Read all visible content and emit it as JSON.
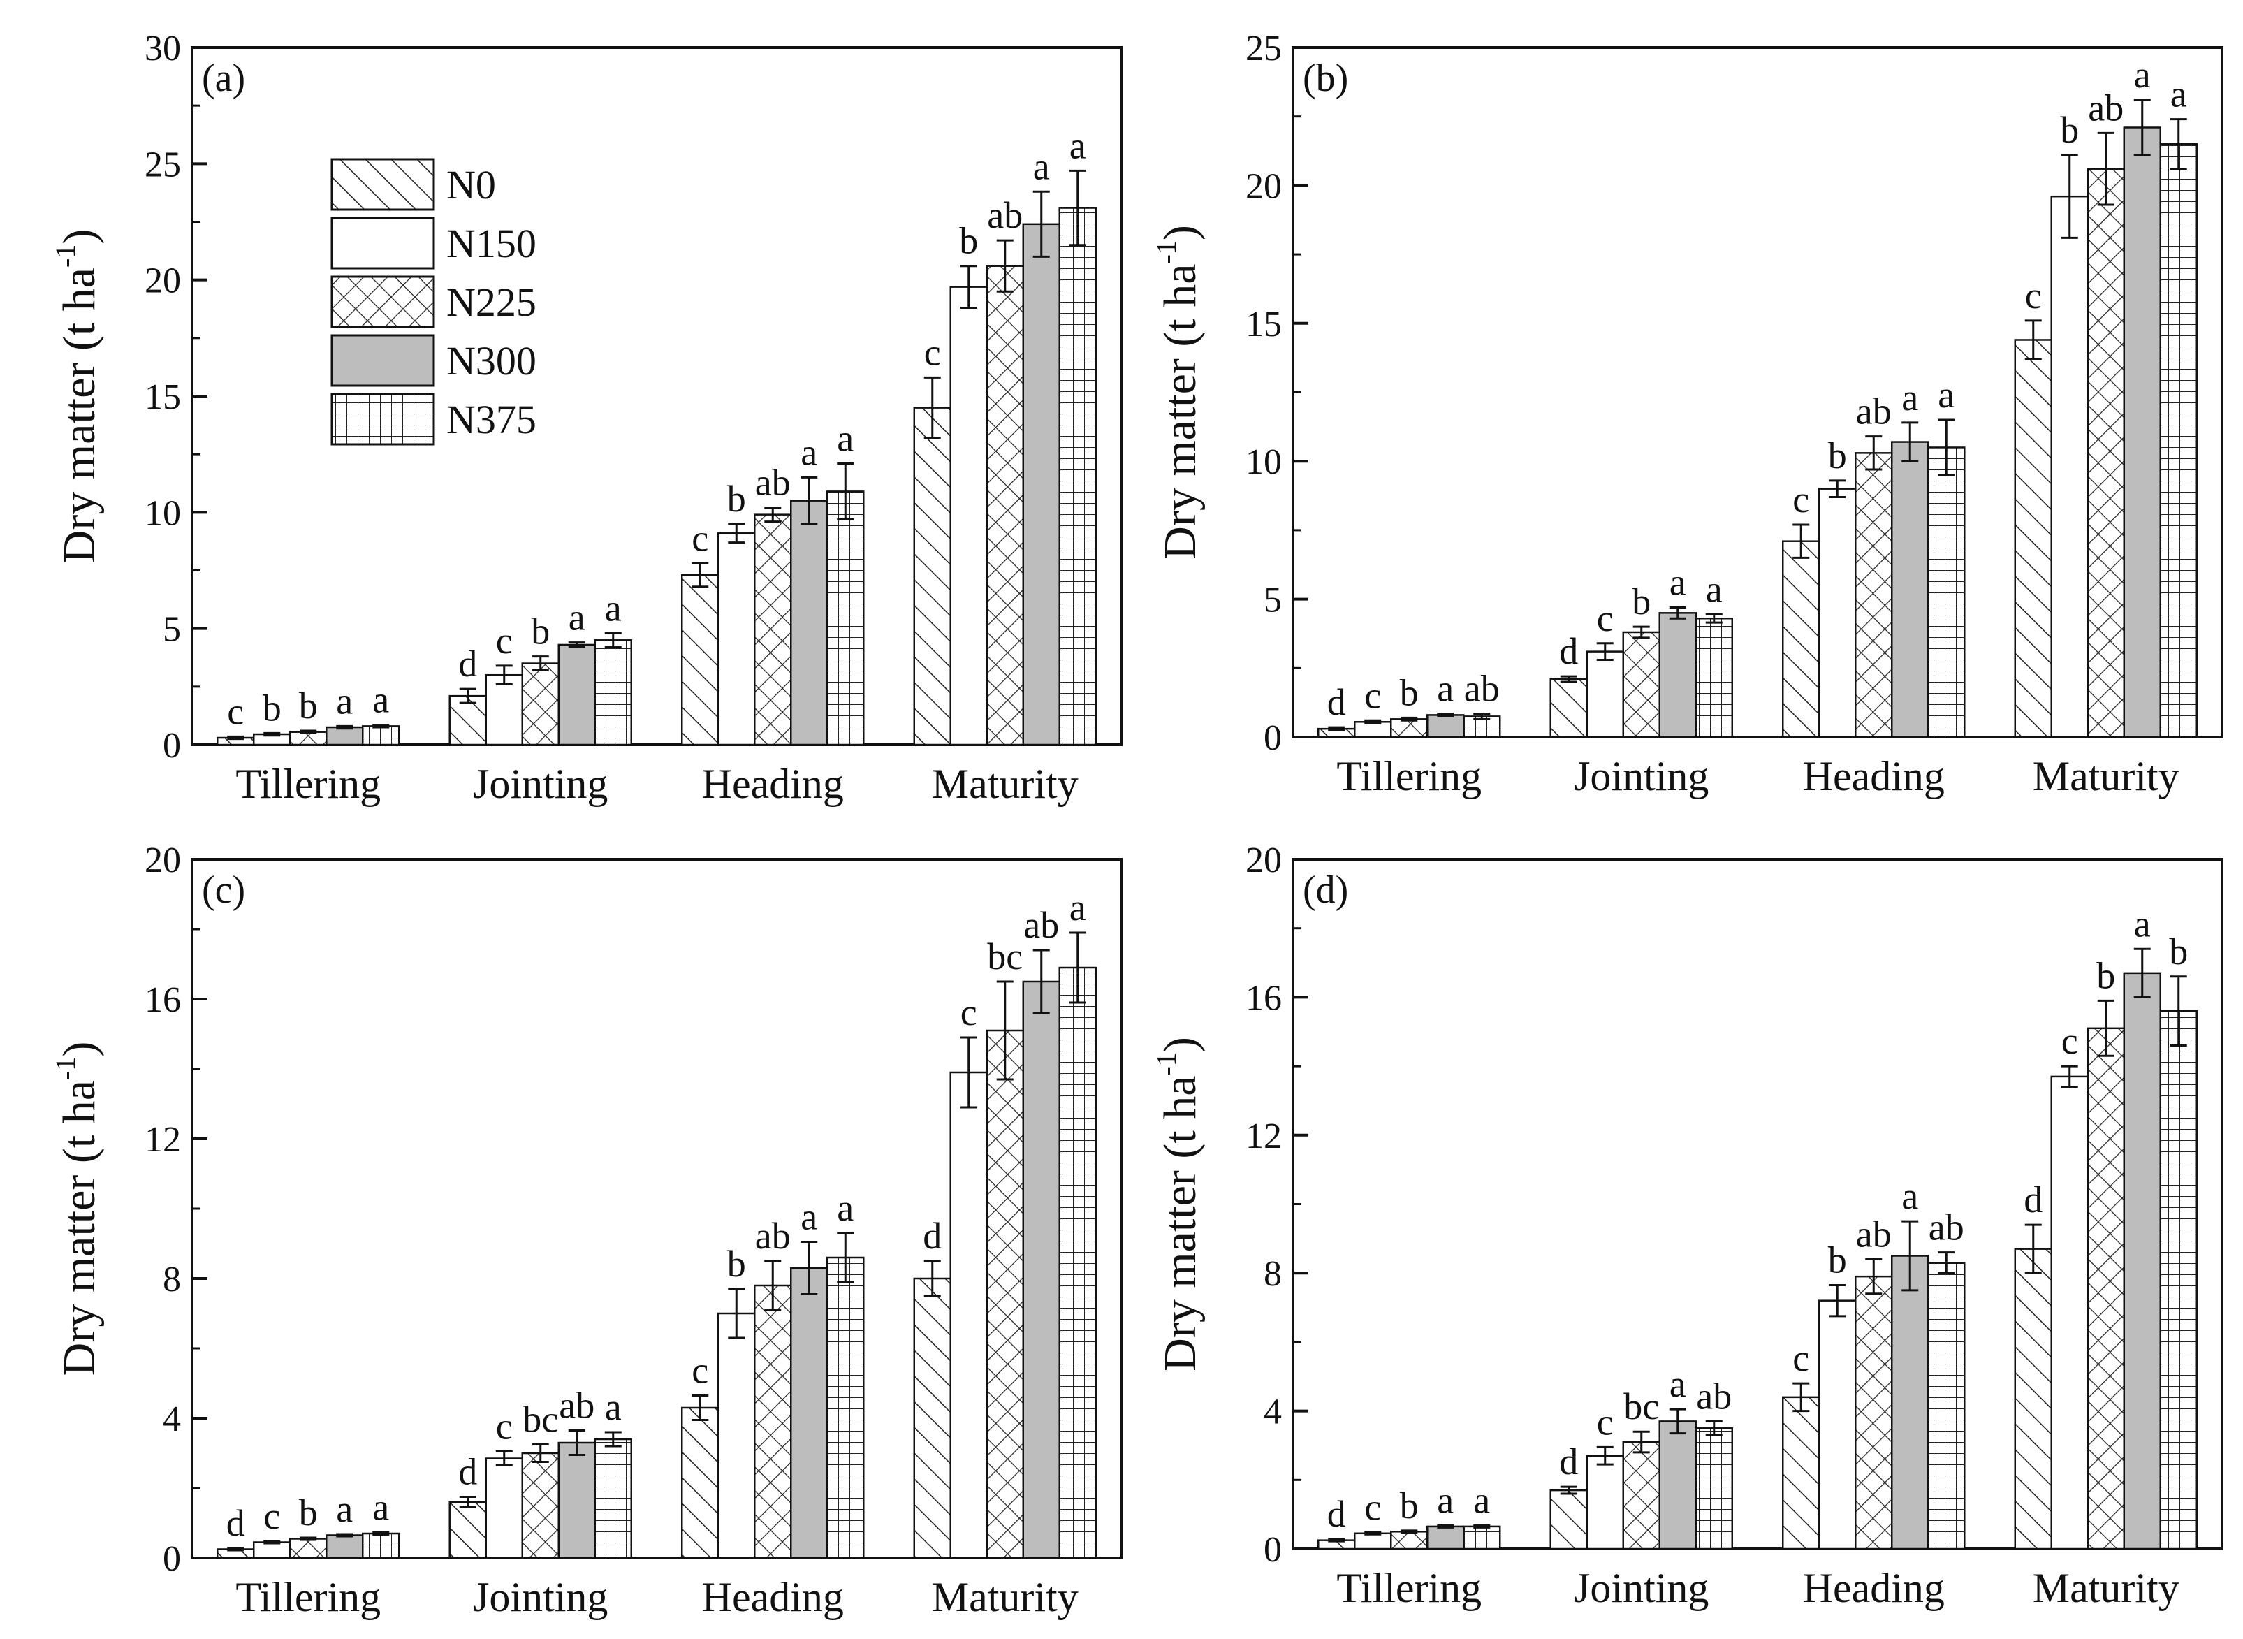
{
  "colors": {
    "axis": "#111111",
    "bar_fill": "#ffffff",
    "n300_fill": "#bdbdbd",
    "pattern_stroke": "#222222"
  },
  "legend": [
    {
      "name": "N0",
      "pattern": "diagonal-hatch"
    },
    {
      "name": "N150",
      "pattern": "blank"
    },
    {
      "name": "N225",
      "pattern": "cross-hatch"
    },
    {
      "name": "N300",
      "pattern": "gray"
    },
    {
      "name": "N375",
      "pattern": "grid"
    }
  ],
  "chart_data": [
    {
      "type": "bar",
      "panel": "(a)",
      "ylabel": "Dry matter (t ha",
      "ylabel_sup": "-1",
      "ylabel_close": ")",
      "ylim": [
        0,
        30
      ],
      "yticks": [
        0,
        5,
        10,
        15,
        20,
        25,
        30
      ],
      "categories": [
        "Tillering",
        "Jointing",
        "Heading",
        "Maturity"
      ],
      "show_legend": true,
      "series": [
        {
          "name": "N0",
          "values": [
            0.3,
            2.1,
            7.3,
            14.5
          ],
          "errors": [
            0.05,
            0.3,
            0.5,
            1.3
          ],
          "letters": [
            "c",
            "d",
            "c",
            "c"
          ]
        },
        {
          "name": "N150",
          "values": [
            0.45,
            3.0,
            9.1,
            19.7
          ],
          "errors": [
            0.05,
            0.4,
            0.4,
            0.9
          ],
          "letters": [
            "b",
            "c",
            "b",
            "b"
          ]
        },
        {
          "name": "N225",
          "values": [
            0.55,
            3.5,
            9.9,
            20.6
          ],
          "errors": [
            0.05,
            0.3,
            0.3,
            1.1
          ],
          "letters": [
            "b",
            "b",
            "ab",
            "ab"
          ]
        },
        {
          "name": "N300",
          "values": [
            0.75,
            4.3,
            10.5,
            22.4
          ],
          "errors": [
            0.05,
            0.1,
            1.0,
            1.4
          ],
          "letters": [
            "a",
            "a",
            "a",
            "a"
          ]
        },
        {
          "name": "N375",
          "values": [
            0.8,
            4.5,
            10.9,
            23.1
          ],
          "errors": [
            0.05,
            0.3,
            1.2,
            1.6
          ],
          "letters": [
            "a",
            "a",
            "a",
            "a"
          ]
        }
      ]
    },
    {
      "type": "bar",
      "panel": "(b)",
      "ylabel": "Dry matter (t ha",
      "ylabel_sup": "-1",
      "ylabel_close": ")",
      "ylim": [
        0,
        25
      ],
      "yticks": [
        0,
        5,
        10,
        15,
        20,
        25
      ],
      "categories": [
        "Tillering",
        "Jointing",
        "Heading",
        "Maturity"
      ],
      "show_legend": false,
      "series": [
        {
          "name": "N0",
          "values": [
            0.3,
            2.1,
            7.1,
            14.4
          ],
          "errors": [
            0.05,
            0.1,
            0.6,
            0.7
          ],
          "letters": [
            "d",
            "d",
            "c",
            "c"
          ]
        },
        {
          "name": "N150",
          "values": [
            0.55,
            3.1,
            9.0,
            19.6
          ],
          "errors": [
            0.05,
            0.3,
            0.3,
            1.5
          ],
          "letters": [
            "c",
            "c",
            "b",
            "b"
          ]
        },
        {
          "name": "N225",
          "values": [
            0.65,
            3.8,
            10.3,
            20.6
          ],
          "errors": [
            0.05,
            0.2,
            0.6,
            1.3
          ],
          "letters": [
            "b",
            "b",
            "ab",
            "ab"
          ]
        },
        {
          "name": "N300",
          "values": [
            0.8,
            4.5,
            10.7,
            22.1
          ],
          "errors": [
            0.05,
            0.2,
            0.7,
            1.0
          ],
          "letters": [
            "a",
            "a",
            "a",
            "a"
          ]
        },
        {
          "name": "N375",
          "values": [
            0.75,
            4.3,
            10.5,
            21.5
          ],
          "errors": [
            0.1,
            0.15,
            1.0,
            0.9
          ],
          "letters": [
            "ab",
            "a",
            "a",
            "a"
          ]
        }
      ]
    },
    {
      "type": "bar",
      "panel": "(c)",
      "ylabel": "Dry matter (t ha",
      "ylabel_sup": "-1",
      "ylabel_close": ")",
      "ylim": [
        0,
        20
      ],
      "yticks": [
        0,
        4,
        8,
        12,
        16,
        20
      ],
      "categories": [
        "Tillering",
        "Jointing",
        "Heading",
        "Maturity"
      ],
      "show_legend": false,
      "series": [
        {
          "name": "N0",
          "values": [
            0.25,
            1.6,
            4.3,
            8.0
          ],
          "errors": [
            0.03,
            0.15,
            0.35,
            0.5
          ],
          "letters": [
            "d",
            "d",
            "c",
            "d"
          ]
        },
        {
          "name": "N150",
          "values": [
            0.45,
            2.85,
            7.0,
            13.9
          ],
          "errors": [
            0.03,
            0.2,
            0.7,
            1.0
          ],
          "letters": [
            "c",
            "c",
            "b",
            "c"
          ]
        },
        {
          "name": "N225",
          "values": [
            0.55,
            3.0,
            7.8,
            15.1
          ],
          "errors": [
            0.03,
            0.25,
            0.7,
            1.4
          ],
          "letters": [
            "b",
            "bc",
            "ab",
            "bc"
          ]
        },
        {
          "name": "N300",
          "values": [
            0.65,
            3.3,
            8.3,
            16.5
          ],
          "errors": [
            0.03,
            0.35,
            0.75,
            0.9
          ],
          "letters": [
            "a",
            "ab",
            "a",
            "ab"
          ]
        },
        {
          "name": "N375",
          "values": [
            0.7,
            3.4,
            8.6,
            16.9
          ],
          "errors": [
            0.03,
            0.2,
            0.7,
            1.0
          ],
          "letters": [
            "a",
            "a",
            "a",
            "a"
          ]
        }
      ]
    },
    {
      "type": "bar",
      "panel": "(d)",
      "ylabel": "Dry matter (t ha",
      "ylabel_sup": "-1",
      "ylabel_close": ")",
      "ylim": [
        0,
        20
      ],
      "yticks": [
        0,
        4,
        8,
        12,
        16,
        20
      ],
      "categories": [
        "Tillering",
        "Jointing",
        "Heading",
        "Maturity"
      ],
      "show_legend": false,
      "series": [
        {
          "name": "N0",
          "values": [
            0.25,
            1.7,
            4.4,
            8.7
          ],
          "errors": [
            0.03,
            0.1,
            0.4,
            0.7
          ],
          "letters": [
            "d",
            "d",
            "c",
            "d"
          ]
        },
        {
          "name": "N150",
          "values": [
            0.45,
            2.7,
            7.2,
            13.7
          ],
          "errors": [
            0.03,
            0.25,
            0.45,
            0.3
          ],
          "letters": [
            "c",
            "c",
            "b",
            "c"
          ]
        },
        {
          "name": "N225",
          "values": [
            0.5,
            3.1,
            7.9,
            15.1
          ],
          "errors": [
            0.03,
            0.3,
            0.5,
            0.8
          ],
          "letters": [
            "b",
            "bc",
            "ab",
            "b"
          ]
        },
        {
          "name": "N300",
          "values": [
            0.65,
            3.7,
            8.5,
            16.7
          ],
          "errors": [
            0.03,
            0.35,
            1.0,
            0.7
          ],
          "letters": [
            "a",
            "a",
            "a",
            "a"
          ]
        },
        {
          "name": "N375",
          "values": [
            0.65,
            3.5,
            8.3,
            15.6
          ],
          "errors": [
            0.03,
            0.2,
            0.3,
            1.0
          ],
          "letters": [
            "a",
            "ab",
            "ab",
            "b"
          ]
        }
      ]
    }
  ]
}
